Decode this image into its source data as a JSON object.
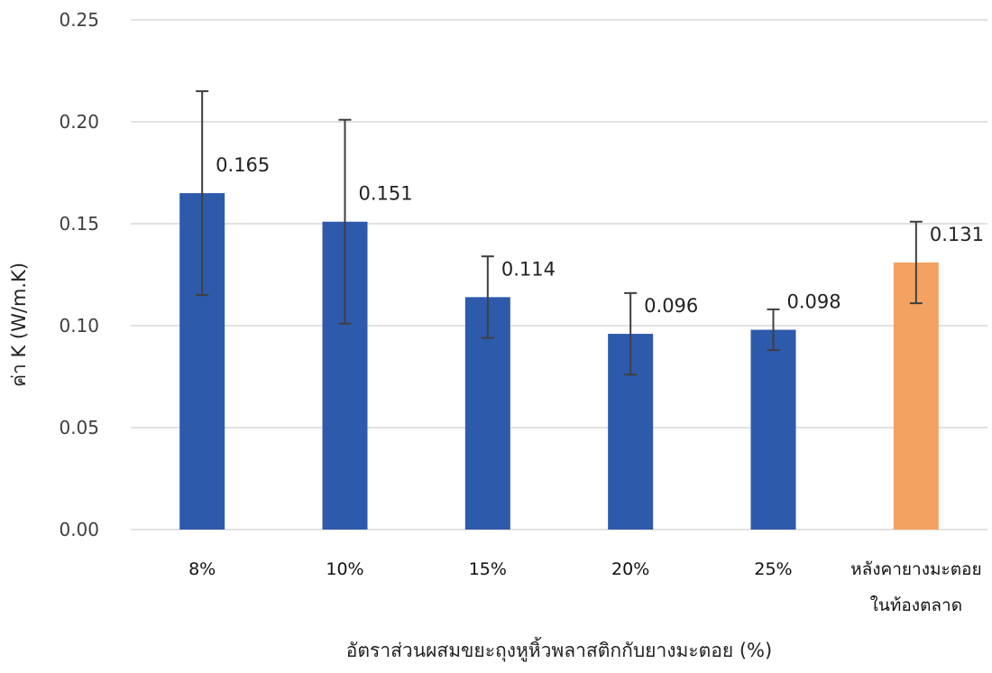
{
  "chart_data": {
    "type": "bar",
    "title": "",
    "xlabel": "อัตราส่วนผสมขยะถุงหูหิ้วพลาสติกกับยางมะตอย (%)",
    "ylabel": "ค่า K (W/m.K)",
    "ylim": [
      0,
      0.25
    ],
    "yticks": [
      "0.00",
      "0.05",
      "0.10",
      "0.15",
      "0.20",
      "0.25"
    ],
    "grid": true,
    "legend": "none",
    "categories": [
      [
        "8%"
      ],
      [
        "10%"
      ],
      [
        "15%"
      ],
      [
        "20%"
      ],
      [
        "25%"
      ],
      [
        "หลังคายางมะตอย",
        "ในท้องตลาด"
      ]
    ],
    "values": [
      0.165,
      0.151,
      0.114,
      0.096,
      0.098,
      0.131
    ],
    "value_labels": [
      "0.165",
      "0.151",
      "0.114",
      "0.096",
      "0.098",
      "0.131"
    ],
    "error_bars": [
      0.05,
      0.05,
      0.02,
      0.02,
      0.01,
      0.02
    ],
    "bar_colors": [
      "#2e5aac",
      "#2e5aac",
      "#2e5aac",
      "#2e5aac",
      "#2e5aac",
      "#f4a261"
    ]
  }
}
